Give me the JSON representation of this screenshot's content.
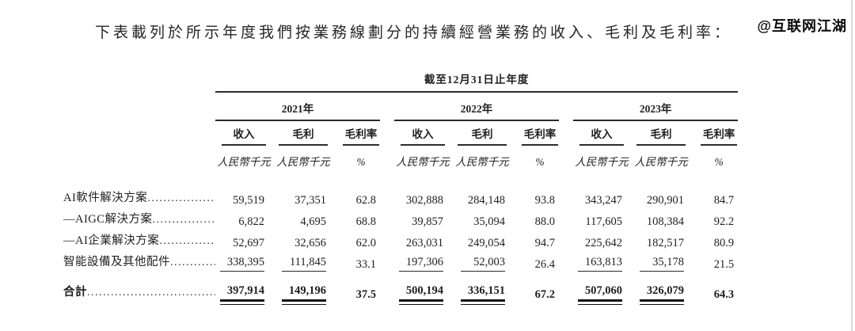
{
  "page": {
    "title": "下表載列於所示年度我們按業務線劃分的持續經營業務的收入、毛利及毛利率：",
    "watermark": "@互联网江湖"
  },
  "table": {
    "span_header": "截至12月31日止年度",
    "years": [
      "2021年",
      "2022年",
      "2023年"
    ],
    "col_headers": [
      "收入",
      "毛利",
      "毛利率"
    ],
    "units": {
      "money": "人民幣千元",
      "percent": "%"
    },
    "rows": [
      {
        "label": "AI軟件解決方案",
        "values": [
          "59,519",
          "37,351",
          "62.8",
          "302,888",
          "284,148",
          "93.8",
          "343,247",
          "290,901",
          "84.7"
        ]
      },
      {
        "label": "—AIGC解決方案",
        "values": [
          "6,822",
          "4,695",
          "68.8",
          "39,857",
          "35,094",
          "88.0",
          "117,605",
          "108,384",
          "92.2"
        ]
      },
      {
        "label": "—AI企業解決方案",
        "values": [
          "52,697",
          "32,656",
          "62.0",
          "263,031",
          "249,054",
          "94.7",
          "225,642",
          "182,517",
          "80.9"
        ]
      },
      {
        "label": "智能設備及其他配件",
        "values": [
          "338,395",
          "111,845",
          "33.1",
          "197,306",
          "52,003",
          "26.4",
          "163,813",
          "35,178",
          "21.5"
        ]
      },
      {
        "label": "合計",
        "values": [
          "397,914",
          "149,196",
          "37.5",
          "500,194",
          "336,151",
          "67.2",
          "507,060",
          "326,079",
          "64.3"
        ]
      }
    ]
  }
}
